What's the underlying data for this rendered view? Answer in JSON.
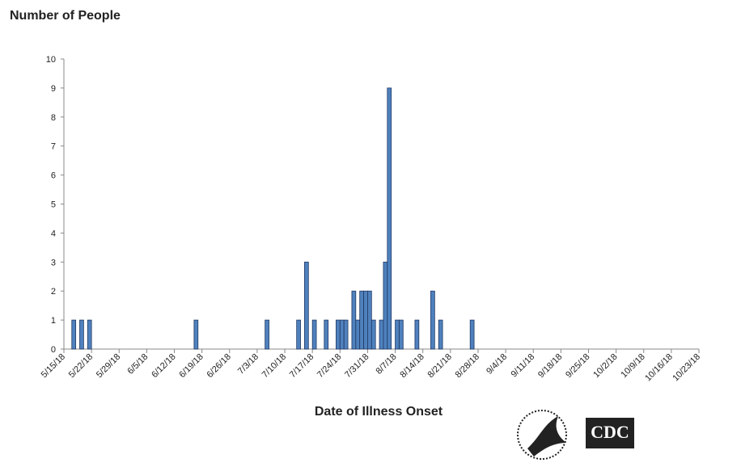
{
  "chart_data": {
    "type": "bar",
    "title": "Number of People",
    "x_label": "Date of Illness Onset",
    "x": [
      "5/17/18",
      "5/19/18",
      "5/21/18",
      "6/17/18",
      "7/5/18",
      "7/13/18",
      "7/15/18",
      "7/17/18",
      "7/20/18",
      "7/23/18",
      "7/24/18",
      "7/25/18",
      "7/27/18",
      "7/28/18",
      "7/29/18",
      "7/30/18",
      "7/31/18",
      "8/1/18",
      "8/3/18",
      "8/4/18",
      "8/5/18",
      "8/7/18",
      "8/8/18",
      "8/12/18",
      "8/16/18",
      "8/18/18",
      "8/26/18"
    ],
    "values": [
      1,
      1,
      1,
      1,
      1,
      1,
      3,
      1,
      1,
      1,
      1,
      1,
      2,
      1,
      2,
      2,
      2,
      1,
      1,
      3,
      9,
      1,
      1,
      1,
      2,
      1,
      1
    ],
    "color": "#4f81bd",
    "xlim": [
      "5/15/18",
      "10/23/18"
    ],
    "xticks": [
      "5/15/18",
      "5/22/18",
      "5/29/18",
      "6/5/18",
      "6/12/18",
      "6/19/18",
      "6/26/18",
      "7/3/18",
      "7/10/18",
      "7/17/18",
      "7/24/18",
      "7/31/18",
      "8/7/18",
      "8/14/18",
      "8/21/18",
      "8/28/18",
      "9/4/18",
      "9/11/18",
      "9/18/18",
      "9/25/18",
      "10/2/18",
      "10/9/18",
      "10/16/18",
      "10/23/18"
    ],
    "ylim": [
      0,
      10
    ],
    "yticks": [
      0,
      1,
      2,
      3,
      4,
      5,
      6,
      7,
      8,
      9,
      10
    ],
    "grid": false
  },
  "logo": {
    "text": "CDC"
  }
}
